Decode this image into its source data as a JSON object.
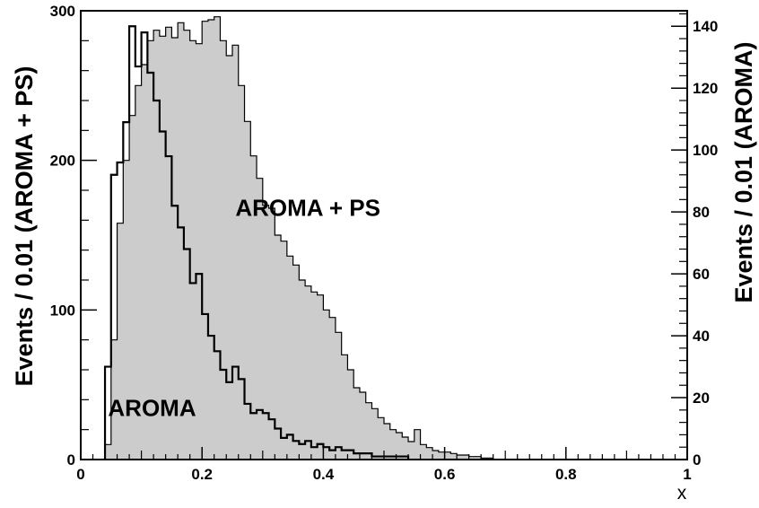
{
  "chart_data": {
    "type": "histogram",
    "x_label": "x",
    "y_label_left": "Events / 0.01 (AROMA + PS)",
    "y_label_right": "Events / 0.01 (AROMA)",
    "xlim": [
      0,
      1
    ],
    "ylim_left": [
      0,
      300
    ],
    "ylim_right": [
      0,
      145
    ],
    "x_ticks": [
      0,
      0.2,
      0.4,
      0.6,
      0.8,
      1
    ],
    "x_tick_labels": [
      "0",
      "0.2",
      "0.4",
      "0.6",
      "0.8",
      "1"
    ],
    "y_left_ticks": [
      0,
      100,
      200,
      300
    ],
    "y_left_tick_labels": [
      "0",
      "100",
      "200",
      "300"
    ],
    "y_right_ticks": [
      0,
      20,
      40,
      60,
      80,
      100,
      120,
      140
    ],
    "y_right_tick_labels": [
      "0",
      "20",
      "40",
      "60",
      "80",
      "100",
      "120",
      "140"
    ],
    "bin_width": 0.01,
    "series": [
      {
        "name": "AROMA + PS",
        "style": "filled",
        "color": "#cccccc",
        "axis": "left",
        "bin_start": 0.04,
        "values": [
          10,
          80,
          158,
          200,
          230,
          250,
          264,
          280,
          287,
          283,
          289,
          282,
          292,
          287,
          280,
          278,
          293,
          294,
          296,
          280,
          270,
          277,
          250,
          226,
          203,
          188,
          170,
          168,
          150,
          146,
          136,
          130,
          120,
          116,
          112,
          110,
          100,
          95,
          85,
          70,
          60,
          48,
          45,
          38,
          34,
          28,
          24,
          20,
          18,
          15,
          12,
          20,
          10,
          8,
          6,
          5,
          5,
          4,
          3,
          3,
          2,
          2,
          1,
          1
        ]
      },
      {
        "name": "AROMA",
        "style": "outline",
        "color": "#000000",
        "axis": "right",
        "bin_start": 0.04,
        "values": [
          30,
          92,
          96,
          109,
          140,
          127,
          138,
          125,
          116,
          106,
          98,
          82,
          75,
          68,
          57,
          60,
          47,
          40,
          35,
          29,
          25,
          30,
          26,
          18,
          15,
          16,
          15,
          13,
          10,
          7,
          8,
          6,
          5,
          6,
          4,
          5,
          4,
          3,
          4,
          3,
          3,
          2,
          2,
          2,
          1,
          1,
          1,
          1,
          1,
          1
        ]
      }
    ],
    "annotations": [
      {
        "text": "AROMA + PS",
        "x": 0.255,
        "y_left": 163
      },
      {
        "text": "AROMA",
        "x": 0.045,
        "y_left": 29
      }
    ]
  }
}
